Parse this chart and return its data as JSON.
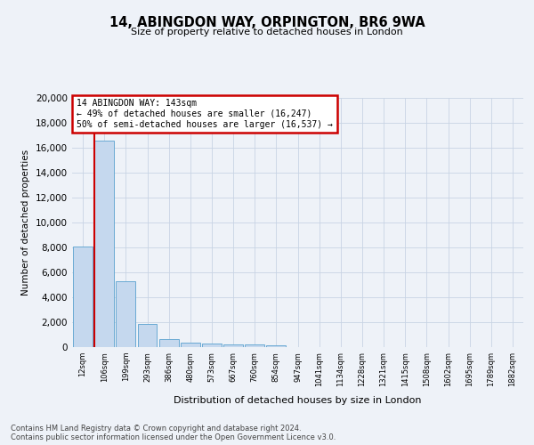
{
  "title1": "14, ABINGDON WAY, ORPINGTON, BR6 9WA",
  "title2": "Size of property relative to detached houses in London",
  "xlabel": "Distribution of detached houses by size in London",
  "ylabel": "Number of detached properties",
  "categories": [
    "12sqm",
    "106sqm",
    "199sqm",
    "293sqm",
    "386sqm",
    "480sqm",
    "573sqm",
    "667sqm",
    "760sqm",
    "854sqm",
    "947sqm",
    "1041sqm",
    "1134sqm",
    "1228sqm",
    "1321sqm",
    "1415sqm",
    "1508sqm",
    "1602sqm",
    "1695sqm",
    "1789sqm",
    "1882sqm"
  ],
  "bar_heights": [
    8100,
    16600,
    5300,
    1850,
    650,
    350,
    260,
    200,
    190,
    155,
    0,
    0,
    0,
    0,
    0,
    0,
    0,
    0,
    0,
    0,
    0
  ],
  "bar_color": "#c5d8ee",
  "bar_edge_color": "#6aaad4",
  "vline_x_index": 1,
  "vline_color": "#cc0000",
  "annotation_line1": "14 ABINGDON WAY: 143sqm",
  "annotation_line2": "← 49% of detached houses are smaller (16,247)",
  "annotation_line3": "50% of semi-detached houses are larger (16,537) →",
  "annotation_box_color": "#cc0000",
  "ylim": [
    0,
    20000
  ],
  "yticks": [
    0,
    2000,
    4000,
    6000,
    8000,
    10000,
    12000,
    14000,
    16000,
    18000,
    20000
  ],
  "footer1": "Contains HM Land Registry data © Crown copyright and database right 2024.",
  "footer2": "Contains public sector information licensed under the Open Government Licence v3.0.",
  "bg_color": "#eef2f8",
  "plot_bg_color": "#eef2f8"
}
